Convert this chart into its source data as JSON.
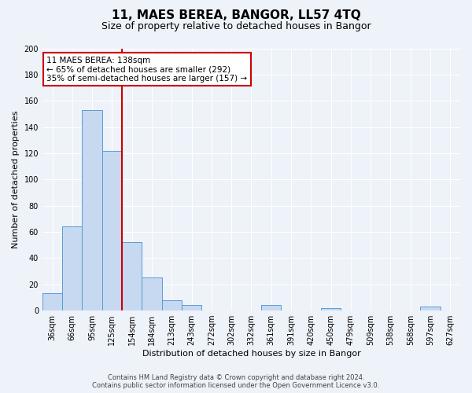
{
  "title": "11, MAES BEREA, BANGOR, LL57 4TQ",
  "subtitle": "Size of property relative to detached houses in Bangor",
  "xlabel": "Distribution of detached houses by size in Bangor",
  "ylabel": "Number of detached properties",
  "categories": [
    "36sqm",
    "66sqm",
    "95sqm",
    "125sqm",
    "154sqm",
    "184sqm",
    "213sqm",
    "243sqm",
    "272sqm",
    "302sqm",
    "332sqm",
    "361sqm",
    "391sqm",
    "420sqm",
    "450sqm",
    "479sqm",
    "509sqm",
    "538sqm",
    "568sqm",
    "597sqm",
    "627sqm"
  ],
  "values": [
    13,
    64,
    153,
    122,
    52,
    25,
    8,
    4,
    0,
    0,
    0,
    4,
    0,
    0,
    2,
    0,
    0,
    0,
    0,
    3,
    0
  ],
  "bar_color": "#c6d9f0",
  "bar_edge_color": "#5b9bd5",
  "vline_x": 3.5,
  "vline_color": "#cc0000",
  "ylim": [
    0,
    200
  ],
  "yticks": [
    0,
    20,
    40,
    60,
    80,
    100,
    120,
    140,
    160,
    180,
    200
  ],
  "annotation_title": "11 MAES BEREA: 138sqm",
  "annotation_line1": "← 65% of detached houses are smaller (292)",
  "annotation_line2": "35% of semi-detached houses are larger (157) →",
  "footer1": "Contains HM Land Registry data © Crown copyright and database right 2024.",
  "footer2": "Contains public sector information licensed under the Open Government Licence v3.0.",
  "background_color": "#eef2f9",
  "title_fontsize": 11,
  "subtitle_fontsize": 9,
  "axis_label_fontsize": 8,
  "tick_fontsize": 7
}
